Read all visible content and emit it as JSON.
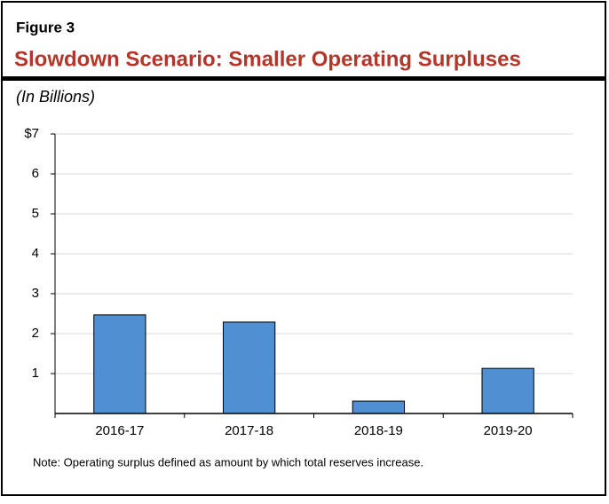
{
  "chart_data": {
    "type": "bar",
    "figure_label": "Figure 3",
    "title": "Slowdown Scenario: Smaller Operating Surpluses",
    "subtitle": "(In Billions)",
    "note": "Note: Operating surplus defined as amount by which total reserves increase.",
    "categories": [
      "2016-17",
      "2017-18",
      "2018-19",
      "2019-20"
    ],
    "values": [
      2.47,
      2.29,
      0.31,
      1.13
    ],
    "color": "#4f8fd2",
    "ylim": [
      0,
      7
    ],
    "yticks": [
      1,
      2,
      3,
      4,
      5,
      6,
      {
        "value": 7,
        "label": "$7"
      }
    ],
    "grid": true
  }
}
